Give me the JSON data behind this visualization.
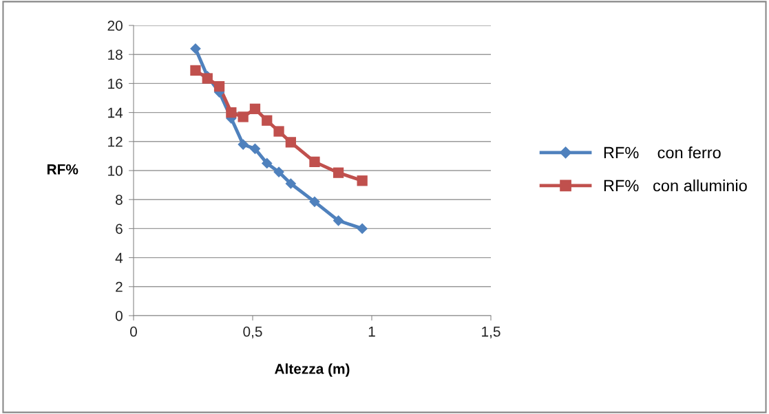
{
  "chart_data": {
    "type": "line",
    "xlabel": "Altezza (m)",
    "ylabel": "RF%",
    "x": [
      0.26,
      0.31,
      0.36,
      0.41,
      0.46,
      0.51,
      0.56,
      0.61,
      0.66,
      0.76,
      0.86,
      0.96
    ],
    "series": [
      {
        "name": "RF%    con ferro",
        "color": "#4f81bd",
        "marker": "diamond",
        "values": [
          18.4,
          16.5,
          15.4,
          13.6,
          11.8,
          11.5,
          10.5,
          9.9,
          9.1,
          7.85,
          6.55,
          6.0
        ]
      },
      {
        "name": "RF%   con alluminio",
        "color": "#c0504d",
        "marker": "square",
        "values": [
          16.9,
          16.35,
          15.8,
          14.0,
          13.7,
          14.25,
          13.45,
          12.7,
          11.95,
          10.6,
          9.85,
          9.3
        ]
      }
    ],
    "xlim": [
      0,
      1.5
    ],
    "xticks": [
      {
        "value": 0,
        "label": "0"
      },
      {
        "value": 0.5,
        "label": "0,5"
      },
      {
        "value": 1,
        "label": "1"
      },
      {
        "value": 1.5,
        "label": "1,5"
      }
    ],
    "ylim": [
      0,
      20
    ],
    "yticks": [
      0,
      2,
      4,
      6,
      8,
      10,
      12,
      14,
      16,
      18,
      20
    ],
    "grid": "y",
    "legend": "right",
    "line_style": "solid"
  }
}
